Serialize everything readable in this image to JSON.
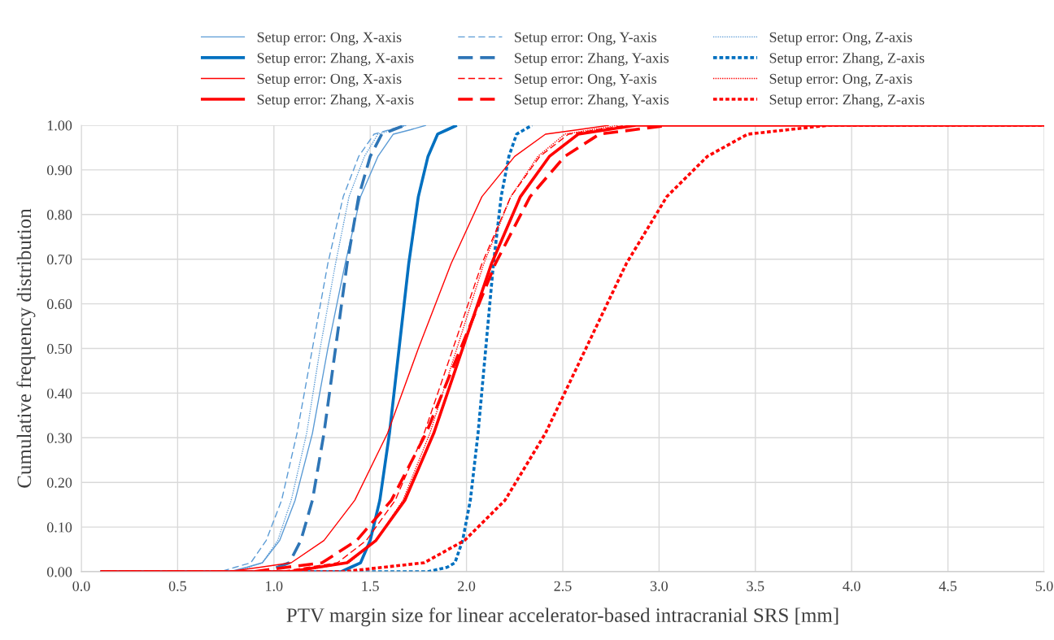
{
  "chart_data": {
    "type": "line",
    "xlabel": "PTV margin size for linear accelerator-based intracranial SRS [mm]",
    "ylabel": "Cumulative frequency distribution",
    "xlim": [
      0,
      5
    ],
    "ylim": [
      0,
      1
    ],
    "xticks": [
      {
        "value": 0,
        "label": "0.0"
      },
      {
        "value": 0.5,
        "label": "0.5"
      },
      {
        "value": 1,
        "label": "1.0"
      },
      {
        "value": 1.5,
        "label": "1.5"
      },
      {
        "value": 2,
        "label": "2.0"
      },
      {
        "value": 2.5,
        "label": "2.5"
      },
      {
        "value": 3,
        "label": "3.0"
      },
      {
        "value": 3.5,
        "label": "3.5"
      },
      {
        "value": 4,
        "label": "4.0"
      },
      {
        "value": 4.5,
        "label": "4.5"
      },
      {
        "value": 5,
        "label": "5.0"
      }
    ],
    "yticks": [
      {
        "value": 0,
        "label": "0.00"
      },
      {
        "value": 0.1,
        "label": "0.10"
      },
      {
        "value": 0.2,
        "label": "0.20"
      },
      {
        "value": 0.3,
        "label": "0.30"
      },
      {
        "value": 0.4,
        "label": "0.40"
      },
      {
        "value": 0.5,
        "label": "0.50"
      },
      {
        "value": 0.6,
        "label": "0.60"
      },
      {
        "value": 0.7,
        "label": "0.70"
      },
      {
        "value": 0.8,
        "label": "0.80"
      },
      {
        "value": 0.9,
        "label": "0.90"
      },
      {
        "value": 1,
        "label": "1.00"
      }
    ],
    "grid": true,
    "legend": "top",
    "marker": "none",
    "series": [
      {
        "name": "Setup error: Ong, X-axis",
        "color": "#5b9bd5",
        "line_style": "solid",
        "x": [
          0.1,
          0.77,
          0.86,
          0.94,
          1.03,
          1.11,
          1.2,
          1.28,
          1.37,
          1.45,
          1.54,
          1.62,
          1.71,
          1.79
        ],
        "values": [
          0,
          0,
          0.01,
          0.02,
          0.07,
          0.16,
          0.31,
          0.5,
          0.69,
          0.84,
          0.93,
          0.98,
          0.99,
          1.0
        ]
      },
      {
        "name": "Setup error: Ong, Y-axis",
        "color": "#5b9bd5",
        "line_style": "dashed",
        "x": [
          0.1,
          0.72,
          0.8,
          0.88,
          0.96,
          1.04,
          1.12,
          1.2,
          1.28,
          1.36,
          1.44,
          1.52,
          1.6,
          1.68
        ],
        "values": [
          0,
          0,
          0.01,
          0.02,
          0.07,
          0.16,
          0.31,
          0.5,
          0.69,
          0.84,
          0.93,
          0.98,
          0.99,
          1.0
        ]
      },
      {
        "name": "Setup error: Ong, Z-axis",
        "color": "#5b9bd5",
        "line_style": "dotted",
        "x": [
          0.1,
          0.79,
          0.87,
          0.94,
          1.02,
          1.09,
          1.17,
          1.24,
          1.32,
          1.39,
          1.47,
          1.54,
          1.62,
          1.69
        ],
        "values": [
          0,
          0,
          0.01,
          0.02,
          0.07,
          0.16,
          0.31,
          0.5,
          0.69,
          0.84,
          0.93,
          0.98,
          0.99,
          1.0
        ]
      },
      {
        "name": "Setup error: Zhang, X-axis",
        "color": "#0070c0",
        "line_style": "solid",
        "x": [
          0.1,
          1.35,
          1.4,
          1.45,
          1.5,
          1.55,
          1.6,
          1.65,
          1.7,
          1.75,
          1.8,
          1.85,
          1.9,
          1.95
        ],
        "values": [
          0,
          0,
          0.01,
          0.02,
          0.07,
          0.16,
          0.31,
          0.5,
          0.69,
          0.84,
          0.93,
          0.98,
          0.99,
          1.0
        ]
      },
      {
        "name": "Setup error: Zhang, Y-axis",
        "color": "#2e75b6",
        "line_style": "dashed",
        "x": [
          0.1,
          0.96,
          1.02,
          1.08,
          1.14,
          1.2,
          1.26,
          1.32,
          1.38,
          1.44,
          1.5,
          1.56,
          1.62,
          1.68
        ],
        "values": [
          0,
          0,
          0.01,
          0.02,
          0.07,
          0.16,
          0.31,
          0.5,
          0.69,
          0.84,
          0.93,
          0.98,
          0.99,
          1.0
        ]
      },
      {
        "name": "Setup error: Zhang, Z-axis",
        "color": "#0070c0",
        "line_style": "dotted",
        "x": [
          0.1,
          1.8,
          1.9,
          1.94,
          1.98,
          2.02,
          2.06,
          2.1,
          2.14,
          2.18,
          2.22,
          2.26,
          2.3,
          2.34
        ],
        "values": [
          0,
          0,
          0.01,
          0.02,
          0.07,
          0.16,
          0.31,
          0.5,
          0.69,
          0.84,
          0.93,
          0.98,
          0.99,
          1.0
        ]
      },
      {
        "name": "Setup error: Ong, X-axis",
        "color": "#ff0000",
        "line_style": "solid",
        "x": [
          0.1,
          0.76,
          0.93,
          1.09,
          1.26,
          1.42,
          1.59,
          1.75,
          1.92,
          2.08,
          2.25,
          2.41,
          2.58,
          2.74
        ],
        "values": [
          0,
          0,
          0.01,
          0.02,
          0.07,
          0.16,
          0.31,
          0.5,
          0.69,
          0.84,
          0.93,
          0.98,
          0.99,
          1.0
        ]
      },
      {
        "name": "Setup error: Ong, Y-axis",
        "color": "#ff0000",
        "line_style": "dashed",
        "x": [
          0.1,
          1.03,
          1.18,
          1.33,
          1.48,
          1.63,
          1.78,
          1.93,
          2.08,
          2.23,
          2.38,
          2.53,
          2.68,
          2.83
        ],
        "values": [
          0,
          0,
          0.01,
          0.02,
          0.07,
          0.16,
          0.31,
          0.5,
          0.69,
          0.84,
          0.93,
          0.98,
          0.99,
          1.0
        ]
      },
      {
        "name": "Setup error: Ong, Z-axis",
        "color": "#ff0000",
        "line_style": "dotted",
        "x": [
          0.1,
          1.11,
          1.25,
          1.39,
          1.53,
          1.67,
          1.81,
          1.95,
          2.09,
          2.23,
          2.37,
          2.51,
          2.65,
          2.79
        ],
        "values": [
          0,
          0,
          0.01,
          0.02,
          0.07,
          0.16,
          0.31,
          0.5,
          0.69,
          0.84,
          0.93,
          0.98,
          0.99,
          1.0
        ]
      },
      {
        "name": "Setup error: Zhang, X-axis",
        "color": "#ff0000",
        "line_style": "solid",
        "x": [
          0.1,
          1.08,
          1.23,
          1.38,
          1.53,
          1.68,
          1.83,
          1.98,
          2.13,
          2.28,
          2.43,
          2.58,
          2.73,
          2.88,
          5.0
        ],
        "values": [
          0,
          0,
          0.01,
          0.02,
          0.07,
          0.16,
          0.31,
          0.5,
          0.69,
          0.84,
          0.93,
          0.98,
          0.99,
          1.0,
          1.0
        ]
      },
      {
        "name": "Setup error: Zhang, Y-axis",
        "color": "#ff0000",
        "line_style": "dashed",
        "x": [
          0.1,
          0.89,
          1.07,
          1.25,
          1.43,
          1.61,
          1.79,
          1.97,
          2.15,
          2.33,
          2.51,
          2.69,
          2.87,
          3.05
        ],
        "values": [
          0,
          0,
          0.01,
          0.02,
          0.07,
          0.16,
          0.31,
          0.5,
          0.69,
          0.84,
          0.93,
          0.98,
          0.99,
          1.0
        ]
      },
      {
        "name": "Setup error: Zhang, Z-axis",
        "color": "#ff0000",
        "line_style": "dotted",
        "x": [
          0.1,
          1.36,
          1.57,
          1.78,
          1.99,
          2.2,
          2.41,
          2.62,
          2.83,
          3.04,
          3.25,
          3.46,
          3.67,
          3.88,
          5.0
        ],
        "values": [
          0,
          0,
          0.01,
          0.02,
          0.07,
          0.16,
          0.31,
          0.5,
          0.69,
          0.84,
          0.93,
          0.98,
          0.99,
          1.0,
          1.0
        ]
      }
    ]
  }
}
